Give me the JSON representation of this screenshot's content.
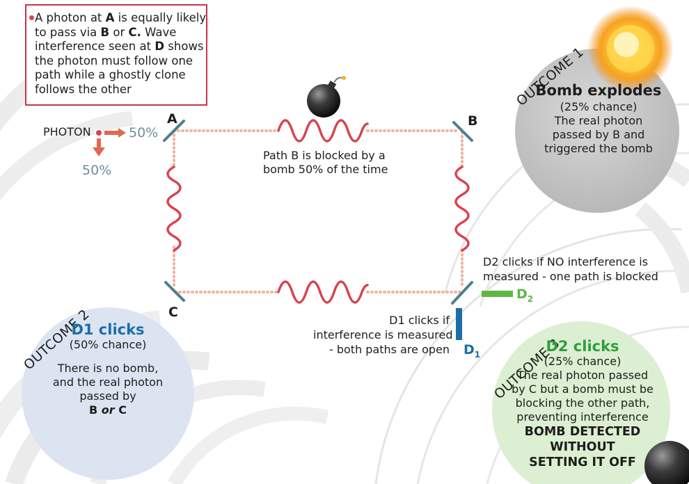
{
  "intro": {
    "line1_a": "A photon at ",
    "line1_b": "A",
    "line1_c": " is equally likely",
    "line2_a": "to pass via ",
    "line2_b": "B",
    "line2_c": " or ",
    "line2_d": "C.",
    "line2_e": " Wave",
    "line3_a": "interference seen at ",
    "line3_b": "D",
    "line3_c": " shows",
    "line4": "the photon must follow one",
    "line5": "path while a ghostly clone",
    "line6": "follows the other"
  },
  "source": {
    "photon_label": "PHOTON",
    "pct_right": "50%",
    "pct_down": "50%"
  },
  "mirrors": {
    "a": "A",
    "b": "B",
    "c": "C"
  },
  "path_b_note": {
    "line1": "Path B is blocked by a",
    "line2": "bomb 50% of the time"
  },
  "detectors": {
    "d1_main": "D",
    "d1_sub": "1",
    "d2_main": "D",
    "d2_sub": "2",
    "d2_note_line1": "D2 clicks if NO interference is",
    "d2_note_line2": "measured - one path is blocked",
    "d1_note_line1": "D1 clicks if",
    "d1_note_line2": "interference is measured",
    "d1_note_line3": "- both paths are open"
  },
  "outcome1": {
    "label": "OUTCOME 1",
    "heading": "Bomb explodes",
    "chance": "(25% chance)",
    "line1": "The real photon",
    "line2": "passed by B and",
    "line3": "triggered the bomb"
  },
  "outcome2": {
    "label": "OUTCOME 2",
    "heading": "D1 clicks",
    "chance": "(50% chance)",
    "line1": "There is no bomb,",
    "line2": "and the real photon",
    "line3": "passed by",
    "line4_a": "B ",
    "line4_b": "or",
    "line4_c": " C"
  },
  "outcome3": {
    "label": "OUTCOME 3",
    "heading": "D2 clicks",
    "chance": "(25% chance)",
    "line1": "The real photon passed",
    "line2": "by C but a bomb must be",
    "line3": "blocking the other path,",
    "line4": "preventing interference",
    "bold1": "BOMB DETECTED",
    "bold2": "WITHOUT",
    "bold3": "SETTING IT OFF"
  },
  "colors": {
    "border_red": "#c8344a",
    "wave_red": "#d8434e",
    "dotted_path": "#f0b4a0",
    "mirror_blue": "#4d7f93",
    "d1_blue": "#1a6fa8",
    "d2_green": "#5db745",
    "outcome1_bg": "#cfcfcf",
    "outcome2_bg": "#dce4f2",
    "outcome3_bg": "#dcefd2",
    "explosion": "#f5a623"
  }
}
